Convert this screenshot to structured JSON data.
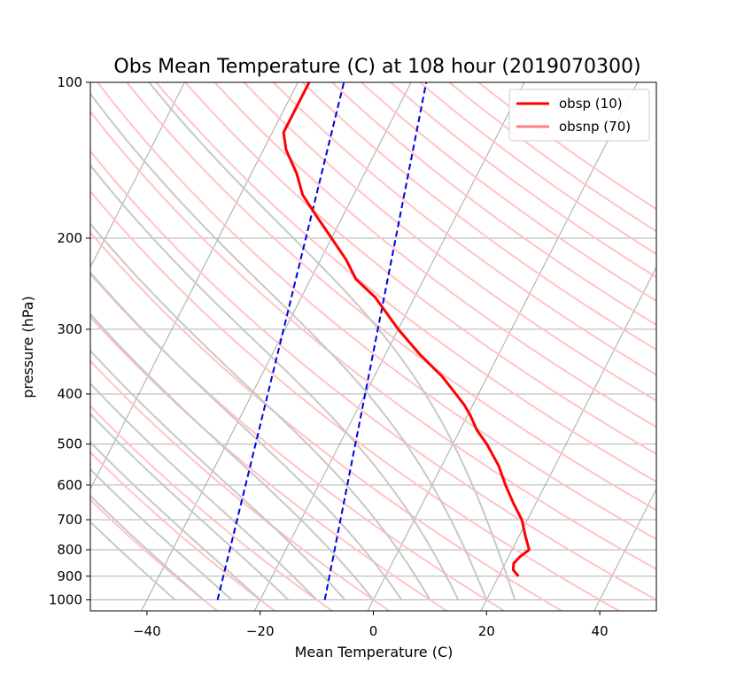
{
  "chart_data": {
    "type": "line",
    "title": "Obs Mean Temperature (C) at 108 hour (2019070300)",
    "xlabel": "Mean Temperature (C)",
    "ylabel": "pressure (hPa)",
    "xlim": [
      -50,
      50
    ],
    "ylim": [
      1050,
      100
    ],
    "y_scale": "log",
    "x_ticks": [
      -40,
      -20,
      0,
      20,
      40
    ],
    "x_tick_labels": [
      "−40",
      "−20",
      "0",
      "20",
      "40"
    ],
    "y_ticks": [
      1000,
      900,
      800,
      700,
      600,
      500,
      400,
      300,
      200,
      100
    ],
    "y_tick_labels": [
      "1000",
      "900",
      "800",
      "700",
      "600",
      "500",
      "400",
      "300",
      "200",
      "100"
    ],
    "grid": "horizontal",
    "legend_position": "top-right",
    "skew": true,
    "series": [
      {
        "name": "obsp (10)",
        "color": "#ff0000",
        "points": [
          {
            "p": 900,
            "t": 23.5
          },
          {
            "p": 875,
            "t": 22
          },
          {
            "p": 850,
            "t": 21.5
          },
          {
            "p": 825,
            "t": 22
          },
          {
            "p": 800,
            "t": 23
          },
          {
            "p": 750,
            "t": 21
          },
          {
            "p": 700,
            "t": 19
          },
          {
            "p": 650,
            "t": 16
          },
          {
            "p": 600,
            "t": 13
          },
          {
            "p": 550,
            "t": 10
          },
          {
            "p": 500,
            "t": 6
          },
          {
            "p": 470,
            "t": 3
          },
          {
            "p": 440,
            "t": 0.5
          },
          {
            "p": 420,
            "t": -1.5
          },
          {
            "p": 400,
            "t": -4
          },
          {
            "p": 370,
            "t": -8
          },
          {
            "p": 335,
            "t": -14
          },
          {
            "p": 300,
            "t": -20
          },
          {
            "p": 260,
            "t": -27
          },
          {
            "p": 240,
            "t": -32
          },
          {
            "p": 220,
            "t": -35.5
          },
          {
            "p": 200,
            "t": -40
          },
          {
            "p": 180,
            "t": -45
          },
          {
            "p": 165,
            "t": -49
          },
          {
            "p": 150,
            "t": -52
          },
          {
            "p": 135,
            "t": -56
          },
          {
            "p": 125,
            "t": -58
          },
          {
            "p": 100,
            "t": -58
          }
        ]
      },
      {
        "name": "obsnp (70)",
        "color": "#ff8080",
        "points": []
      }
    ],
    "reference_lines": {
      "isotherms_every_c": 20,
      "dry_adiabats_color": "#ffc4c4",
      "moist_adiabats_color": "#c8c8c8",
      "mixing_ratio_color": "#0000dd"
    }
  }
}
